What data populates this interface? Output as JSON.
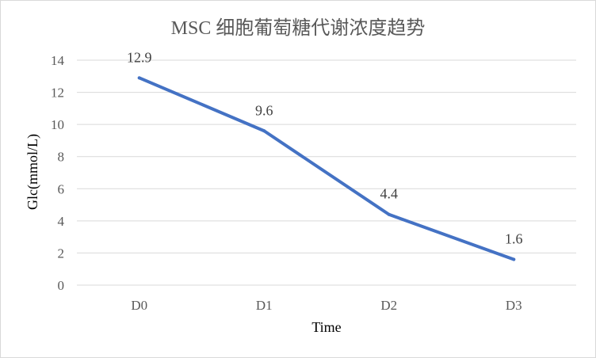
{
  "chart_data": {
    "type": "line",
    "title": "MSC 细胞葡萄糖代谢浓度趋势",
    "xlabel": "Time",
    "ylabel": "Glc(mmol/L)",
    "categories": [
      "D0",
      "D1",
      "D2",
      "D3"
    ],
    "series": [
      {
        "values": [
          12.9,
          9.6,
          4.4,
          1.6
        ]
      }
    ],
    "data_labels": [
      "12.9",
      "9.6",
      "4.4",
      "1.6"
    ],
    "ylim": [
      0,
      14
    ],
    "yticks": [
      0,
      2,
      4,
      6,
      8,
      10,
      12,
      14
    ],
    "grid": true,
    "legend": "none",
    "colors": {
      "line": "#4472C4",
      "grid": "#d9d9d9",
      "text": "#595959"
    }
  }
}
